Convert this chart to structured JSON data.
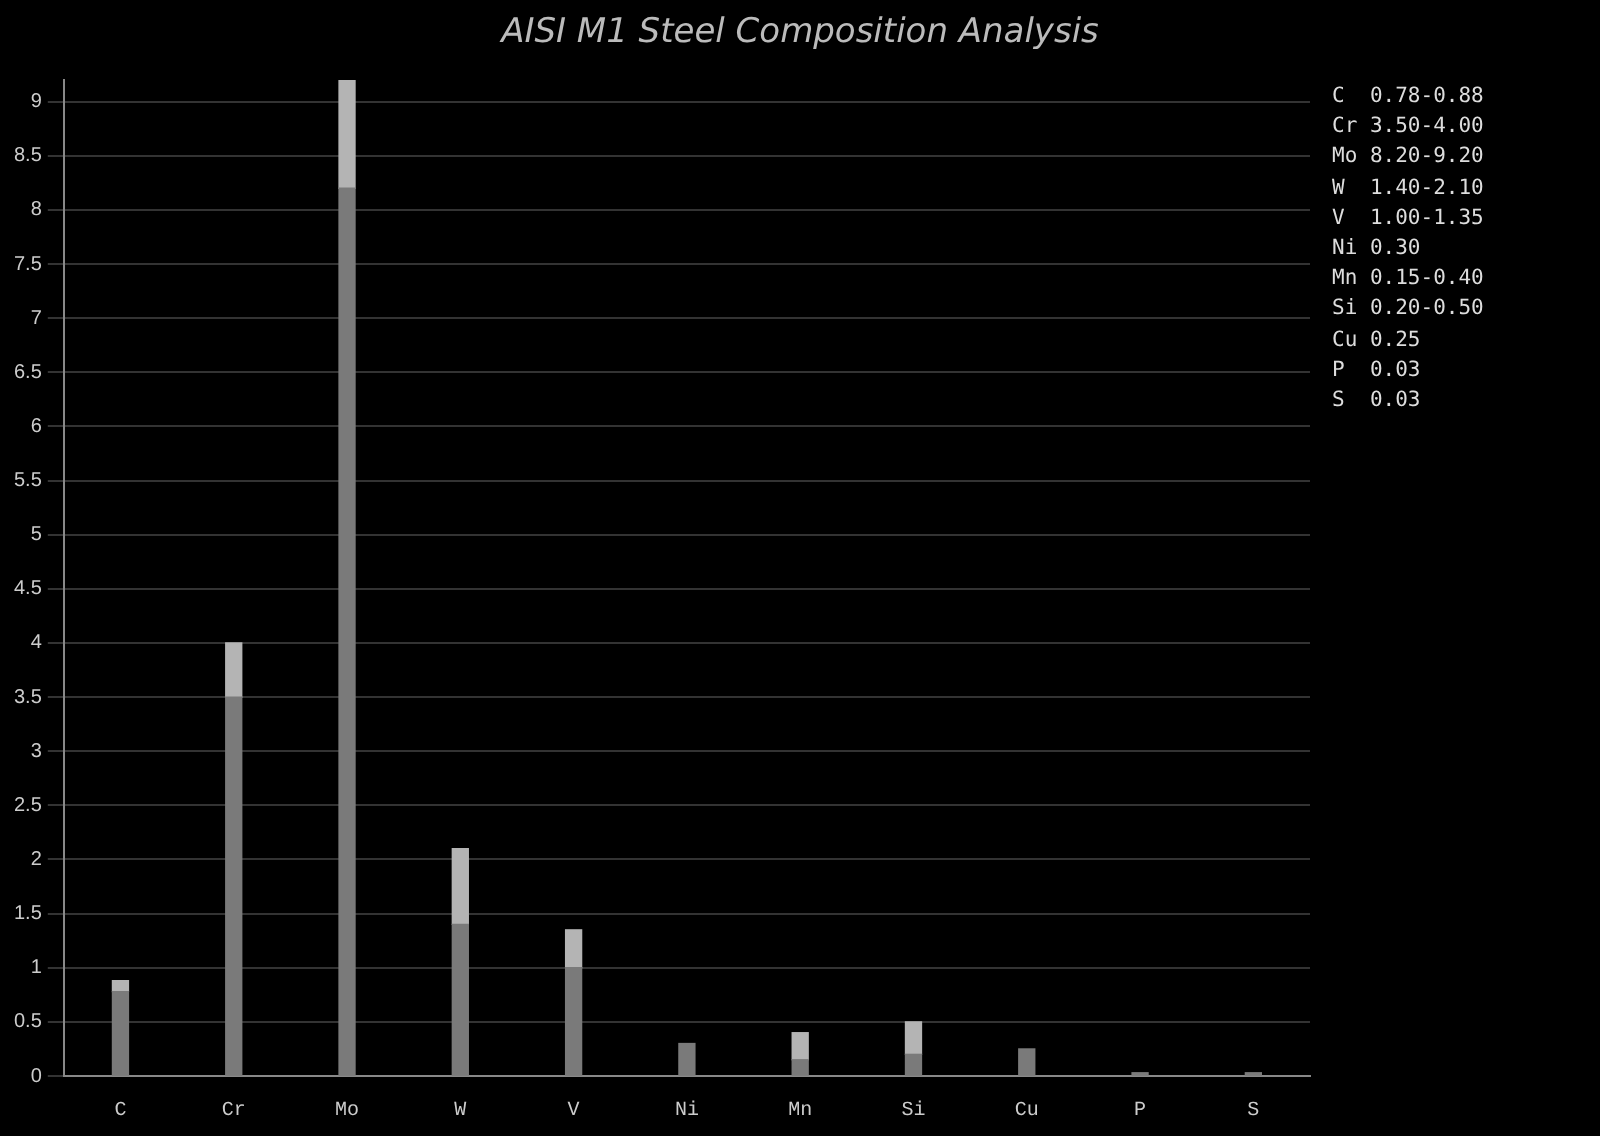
{
  "chart_data": {
    "type": "bar",
    "title": "AISI M1 Steel Composition Analysis",
    "categories": [
      "C",
      "Cr",
      "Mo",
      "W",
      "V",
      "Ni",
      "Mn",
      "Si",
      "Cu",
      "P",
      "S"
    ],
    "series": [
      {
        "color": "#7a7a7a",
        "values": [
          0.78,
          3.5,
          8.2,
          1.4,
          1.0,
          0.3,
          0.15,
          0.2,
          0.25,
          0.03,
          0.03
        ]
      },
      {
        "color": "#b4b4b4",
        "values": [
          0.1,
          0.5,
          1.0,
          0.7,
          0.35,
          null,
          0.25,
          0.3,
          null,
          null,
          null
        ]
      }
    ],
    "stacked": true,
    "ylim": [
      0,
      9.2
    ],
    "yticks": [
      0,
      0.5,
      1,
      1.5,
      2,
      2.5,
      3,
      3.5,
      4,
      4.5,
      5,
      5.5,
      6,
      6.5,
      7,
      7.5,
      8,
      8.5,
      9
    ],
    "grid": "y",
    "annotations": [
      "C  0.78-0.88",
      "Cr 3.50-4.00",
      "Mo 8.20-9.20",
      "W  1.40-2.10",
      "V  1.00-1.35",
      "Ni 0.30",
      "Mn 0.15-0.40",
      "Si 0.20-0.50",
      "Cu 0.25",
      "P  0.03",
      "S  0.03"
    ]
  }
}
